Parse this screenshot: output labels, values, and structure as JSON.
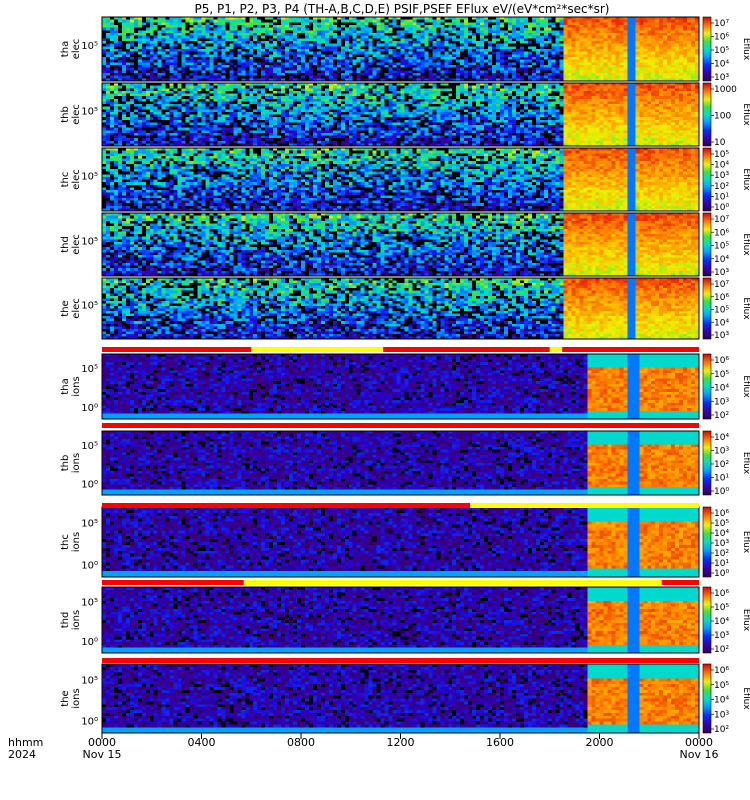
{
  "chart_data": {
    "type": "heatmap",
    "title": "P5, P1, P2, P3, P4 (TH-A,B,C,D,E) PSIF,PSEF EFlux eV/(eV*cm²*sec*sr)",
    "x_axis": {
      "row1_label": "hhmm",
      "row2_label": "2024",
      "ticks": [
        "0000",
        "0400",
        "0800",
        "1200",
        "1600",
        "2000",
        "0000"
      ],
      "date_labels": [
        "Nov 15",
        "Nov 16"
      ]
    },
    "colorbar_unit": "Eflux",
    "panels": [
      {
        "probe": "tha",
        "species": "elec",
        "ylabel": [
          "tha",
          "elec"
        ],
        "y_tick": "10⁵",
        "cb_labels": [
          "10⁷",
          "10⁶",
          "10⁵",
          "10⁴",
          "10³"
        ],
        "cb_range": [
          500,
          15000000
        ]
      },
      {
        "probe": "thb",
        "species": "elec",
        "ylabel": [
          "thb",
          "elec"
        ],
        "y_tick": "10⁵",
        "cb_labels": [
          "1000",
          "100",
          "10"
        ],
        "cb_range": [
          4,
          5000
        ]
      },
      {
        "probe": "thc",
        "species": "elec",
        "ylabel": [
          "thc",
          "elec"
        ],
        "y_tick": "10⁵",
        "cb_labels": [
          "10⁵",
          "10⁴",
          "10³",
          "10²",
          "10¹",
          "10⁰"
        ],
        "cb_range": [
          0.6,
          200000
        ]
      },
      {
        "probe": "thd",
        "species": "elec",
        "ylabel": [
          "thd",
          "elec"
        ],
        "y_tick": "10⁵",
        "cb_labels": [
          "10⁷",
          "10⁶",
          "10⁵",
          "10⁴",
          "10³"
        ],
        "cb_range": [
          500,
          15000000
        ]
      },
      {
        "probe": "the",
        "species": "elec",
        "ylabel": [
          "the",
          "elec"
        ],
        "y_tick": "10⁵",
        "cb_labels": [
          "10⁷",
          "10⁶",
          "10⁵",
          "10⁴",
          "10³"
        ],
        "cb_range": [
          500,
          15000000
        ]
      },
      {
        "probe": "tha",
        "species": "ions",
        "ylabel": [
          "tha",
          "ions"
        ],
        "y_tick_top": "10⁵",
        "y_tick_bot": "10⁰",
        "cb_labels": [
          "10⁶",
          "10⁵",
          "10⁴",
          "10³",
          "10²"
        ],
        "cb_range": [
          50,
          2000000
        ]
      },
      {
        "probe": "thb",
        "species": "ions",
        "ylabel": [
          "thb",
          "ions"
        ],
        "y_tick_top": "10⁵",
        "y_tick_bot": "10⁰",
        "cb_labels": [
          "10⁴",
          "10³",
          "10²",
          "10¹",
          "10⁰"
        ],
        "cb_range": [
          0.5,
          20000
        ]
      },
      {
        "probe": "thc",
        "species": "ions",
        "ylabel": [
          "thc",
          "ions"
        ],
        "y_tick_top": "10⁵",
        "y_tick_bot": "10⁰",
        "cb_labels": [
          "10⁶",
          "10⁵",
          "10⁴",
          "10³",
          "10²",
          "10¹",
          "10⁰"
        ],
        "cb_range": [
          0.5,
          2000000
        ]
      },
      {
        "probe": "thd",
        "species": "ions",
        "ylabel": [
          "thd",
          "ions"
        ],
        "y_tick_top": "10⁵",
        "y_tick_bot": "10⁰",
        "cb_labels": [
          "10⁶",
          "10⁵",
          "10⁴",
          "10³",
          "10²"
        ],
        "cb_range": [
          50,
          2000000
        ]
      },
      {
        "probe": "the",
        "species": "ions",
        "ylabel": [
          "the",
          "ions"
        ],
        "y_tick_top": "10⁵",
        "y_tick_bot": "10⁰",
        "cb_labels": [
          "10⁶",
          "10⁵",
          "10⁴",
          "10³",
          "10²"
        ],
        "cb_range": [
          50,
          2000000
        ]
      }
    ],
    "status_bars": [
      {
        "segments": [
          {
            "from": 0,
            "to": 6,
            "color": "red"
          },
          {
            "from": 6,
            "to": 11.3,
            "color": "yellow"
          },
          {
            "from": 11.3,
            "to": 18,
            "color": "red"
          },
          {
            "from": 18,
            "to": 18.5,
            "color": "yellow"
          },
          {
            "from": 18.5,
            "to": 24,
            "color": "red"
          }
        ]
      },
      {
        "segments": [
          {
            "from": 0,
            "to": 24,
            "color": "red"
          }
        ]
      },
      {
        "segments": [
          {
            "from": 0,
            "to": 14.8,
            "color": "red"
          },
          {
            "from": 14.8,
            "to": 24,
            "color": "yellow"
          }
        ]
      },
      {
        "segments": [
          {
            "from": 0,
            "to": 5.7,
            "color": "red"
          },
          {
            "from": 5.7,
            "to": 22.5,
            "color": "yellow"
          },
          {
            "from": 22.5,
            "to": 24,
            "color": "red"
          }
        ]
      },
      {
        "segments": [
          {
            "from": 0,
            "to": 24,
            "color": "red"
          }
        ]
      }
    ]
  }
}
